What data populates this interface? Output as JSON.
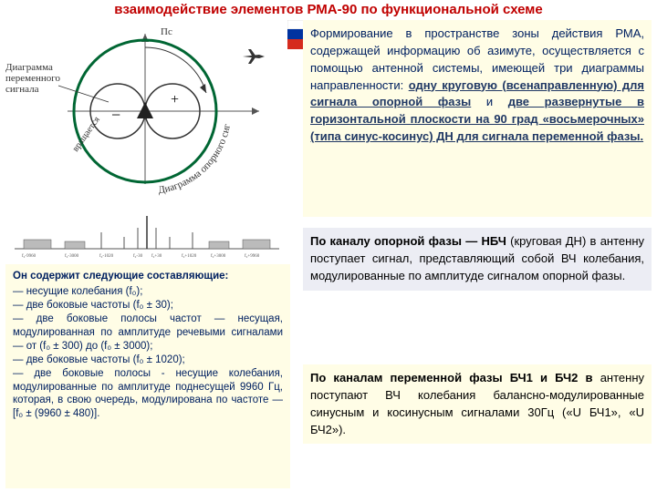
{
  "title": "взаимодействие элементов РМА-90 по функциональной схеме",
  "diagram": {
    "label_ps": "Пс",
    "label_var_signal": "Диаграмма переменного сигнала",
    "label_ref_signal": "Диаграмма опорного сигнала",
    "label_rotates": "вращается",
    "axis_color": "#555",
    "circle_main_color": "#006633",
    "circle_main_width": 3,
    "circle_inner_color": "#333",
    "background": "#ffffff"
  },
  "spectrum": {
    "baseline_color": "#555",
    "bar_color": "#999",
    "center_line_color": "#333",
    "tick_labels_visible": true
  },
  "left_box": {
    "heading": "Он содержит следующие составляющие:",
    "items": [
      "— несущие колебания (f₀);",
      "— две боковые частоты (f₀ ± 30);",
      "— две боковые полосы частот — несущая, модулированная по амплитуде речевыми сигналами — от (f₀ ± 300) до (f₀ ± 3000);",
      "— две боковые частоты (f₀ ± 1020);",
      "— две боковые полосы - несущие колебания, модулированные по амплитуде поднесущей 9960 Гц, которая, в свою очередь, модулирована по частоте — [f₀ ± (9960 ± 480)]."
    ]
  },
  "right_top_html": "Формирование в пространстве зоны действия РМА, содержащей информацию об азимуте, осуществляется с помощью антенной системы, имеющей три диаграммы направленности: <b class='accent-dark underline'>одну круговую (всенаправленную) для сигнала опорной фазы</b> и <b class='accent-dark underline'>две развернутые в горизонтальной плоскости на 90 град «восьмерочных» (типа синус-косинус) ДН для сигнала переменной фазы.</b>",
  "right_mid_html": "<b>По каналу опорной фазы — НБЧ</b> (круговая ДН) в антенну поступает сигнал, представляющий собой ВЧ колебания, модулированные по амплитуде сигналом опорной фазы.",
  "right_bot_html": "<b>По каналам переменной фазы БЧ1 и БЧ2 в</b> антенну поступают ВЧ колебания балансно-модулированные синусным и косинусным сигналами 30Гц («U БЧ1», «U БЧ2»).",
  "flag_colors": [
    "#ffffff",
    "#0033a0",
    "#d52b1e"
  ],
  "colors": {
    "title": "#c00000",
    "box_yellow": "#fffde6",
    "box_gray": "#ecedf4",
    "dark_blue_text": "#002060"
  }
}
